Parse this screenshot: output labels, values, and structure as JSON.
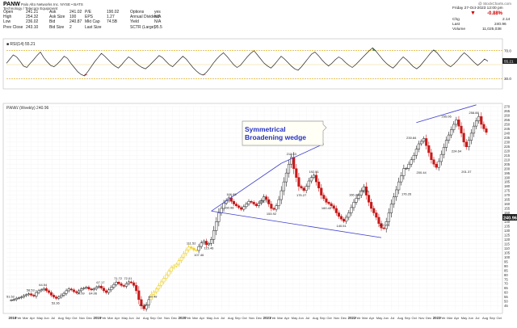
{
  "header": {
    "ticker": "PANW",
    "company_line": "Palo Alto Networks Inc.  NYSE • BATS",
    "sector_line": "Technology / Telecom Equipment",
    "watermark": "@ StockCharts.com",
    "date_line": "Friday 27-Oct-2023  12:00 pm",
    "change_pct": "-0.88%",
    "chg_label": "Chg",
    "chg_value": "2.14",
    "last_label": "Last",
    "last_value": "240.96",
    "volume_label": "Volume",
    "volume_value": "11,025,038",
    "quote_rows": [
      [
        "Open",
        "241.21",
        "Ask",
        "241.02",
        "P/E",
        "190.02",
        "Options",
        "yes"
      ],
      [
        "High",
        "254.32",
        "Ask Size",
        "100",
        "EPS",
        "1.27",
        "Annual Dividend",
        "N/A"
      ],
      [
        "Low",
        "236.02",
        "Bid",
        "240.87",
        "Mkt Cap",
        "74.5B",
        "Yield",
        "N/A"
      ],
      [
        "Prev Close",
        "243.10",
        "Bid Size",
        "2",
        "Last Size",
        "",
        "SCTR (Large)",
        "95.5"
      ]
    ]
  },
  "rsi_panel": {
    "label": "■ RSI(14) 55.21",
    "right_labels": [
      "70.0",
      "55.21",
      "30.0"
    ],
    "values": [
      52,
      58,
      64,
      61,
      55,
      48,
      46,
      52,
      57,
      63,
      68,
      60,
      54,
      49,
      47,
      51,
      56,
      62,
      59,
      52,
      46,
      40,
      36,
      34,
      40,
      47,
      54,
      60,
      66,
      62,
      57,
      52,
      48,
      45,
      50,
      56,
      61,
      58,
      53,
      49,
      46,
      44,
      48,
      53,
      58,
      63,
      60,
      55,
      50,
      47,
      52,
      57,
      62,
      58,
      52,
      46,
      41,
      37,
      35,
      39,
      45,
      52,
      58,
      63,
      67,
      62,
      56,
      50,
      46,
      49,
      55,
      61,
      66,
      70,
      64,
      58,
      52,
      48,
      45,
      50,
      56,
      62,
      58,
      53,
      48,
      44,
      42,
      47,
      53,
      59,
      65,
      68,
      63,
      57,
      52,
      48,
      52,
      57,
      61,
      58,
      53,
      49,
      46,
      50,
      55,
      60,
      65,
      70,
      74,
      69,
      63,
      57,
      52,
      48,
      45,
      50,
      56,
      61,
      57,
      52,
      47,
      44,
      48,
      54,
      60,
      66,
      71,
      67,
      61,
      55,
      50,
      47,
      51,
      56,
      62,
      67,
      63,
      58,
      53,
      49,
      53,
      58,
      55
    ]
  },
  "chart_data": {
    "type": "candlestick",
    "title": "PANW (Weekly) 240.96",
    "annotation": "Symmetrical Broadening wedge",
    "ylim": [
      40,
      270
    ],
    "y_ticks": [
      270,
      265,
      260,
      255,
      250,
      245,
      240,
      235,
      230,
      225,
      220,
      215,
      210,
      205,
      200,
      195,
      190,
      185,
      180,
      175,
      170,
      165,
      160,
      155,
      150,
      145,
      140,
      135,
      130,
      125,
      120,
      115,
      110,
      105,
      100,
      95,
      90,
      85,
      80,
      75,
      70,
      65,
      60,
      55,
      50,
      45
    ],
    "last_price_tag": "240.96",
    "x_axis_labels": [
      "2018",
      "Feb",
      "Mar",
      "Apr",
      "May",
      "Jun",
      "Jul",
      "Aug",
      "Sep",
      "Oct",
      "Nov",
      "Dec",
      "2019",
      "Feb",
      "Mar",
      "Apr",
      "May",
      "Jun",
      "Jul",
      "Aug",
      "Sep",
      "Oct",
      "Nov",
      "Dec",
      "2020",
      "Feb",
      "Mar",
      "Apr",
      "May",
      "Jun",
      "Jul",
      "Aug",
      "Sep",
      "Oct",
      "Nov",
      "Dec",
      "2021",
      "Feb",
      "Mar",
      "Apr",
      "May",
      "Jun",
      "Jul",
      "Aug",
      "Sep",
      "Oct",
      "Nov",
      "Dec",
      "2022",
      "Feb",
      "Mar",
      "Apr",
      "May",
      "Jun",
      "Jul",
      "Aug",
      "Sep",
      "Oct",
      "Nov",
      "Dec",
      "2023",
      "Feb",
      "Mar",
      "Apr",
      "May",
      "Jun",
      "Jul",
      "Aug",
      "Sep",
      "Oct"
    ],
    "price_labels": [
      "51.52",
      "58.53",
      "64.54",
      "53.36",
      "64.09",
      "64.06",
      "67.17",
      "71.72",
      "72.01",
      "41.62",
      "60.49",
      "111.52",
      "107.46",
      "115.46",
      "160.98",
      "166.85",
      "168.19",
      "153.92",
      "212.63",
      "175.27",
      "192.51",
      "160.43",
      "140.51",
      "166.48",
      "179.45",
      "132.22",
      "230.84",
      "200.44",
      "176.26",
      "224.64",
      "255.06",
      "201.37",
      "258.88"
    ],
    "price_label_values": [
      51.52,
      58.53,
      64.54,
      53.36,
      64.09,
      64.06,
      67.17,
      71.72,
      72.01,
      41.62,
      60.49,
      111.52,
      107.46,
      115.46,
      160.98,
      166.85,
      168.19,
      153.92,
      212.63,
      175.27,
      192.51,
      160.43,
      140.51,
      166.48,
      179.45,
      132.22,
      230.84,
      200.44,
      176.26,
      224.64,
      255.06,
      201.37,
      258.88
    ],
    "close_series": [
      51.5,
      52,
      53.5,
      54,
      55,
      56.5,
      57.5,
      58.5,
      57,
      56,
      60,
      62,
      63,
      64.5,
      62,
      60,
      57,
      55,
      53.4,
      55,
      57,
      59,
      62,
      64,
      63,
      61,
      60,
      62,
      64.1,
      65,
      66,
      64,
      63,
      64.1,
      66,
      67.2,
      65,
      62,
      60,
      63,
      66,
      69,
      71.7,
      70,
      68,
      67,
      70,
      72,
      71,
      68,
      62,
      52,
      45,
      41.6,
      46,
      52,
      58,
      60.5,
      64,
      68,
      72,
      76,
      80,
      84,
      88,
      90,
      92,
      96,
      100,
      104,
      108,
      111.5,
      110,
      108,
      107.5,
      112,
      116,
      118,
      114,
      115.5,
      120,
      130,
      140,
      150,
      155,
      161,
      164,
      166.9,
      163,
      160,
      158,
      156,
      154,
      157,
      160,
      163,
      162,
      160,
      158,
      161,
      164,
      168.2,
      165,
      160,
      155,
      154,
      158,
      165,
      175,
      185,
      195,
      205,
      212.6,
      200,
      190,
      180,
      178,
      175.3,
      180,
      186,
      190,
      192.5,
      185,
      178,
      170,
      166,
      162,
      160.4,
      158,
      155,
      150,
      146,
      143,
      140.5,
      145,
      150,
      156,
      162,
      166.5,
      170,
      175,
      179.5,
      170,
      162,
      155,
      150,
      145,
      138,
      133,
      132.2,
      140,
      150,
      160,
      168,
      176,
      185,
      192,
      200,
      200.4,
      205,
      210,
      215,
      222,
      228,
      230.8,
      234,
      226,
      218,
      210,
      205,
      201.4,
      208,
      216,
      224,
      232,
      238,
      244,
      250,
      255.1,
      248,
      240,
      230,
      224.6,
      232,
      240,
      248,
      254,
      258.9,
      250,
      245,
      240.96
    ]
  }
}
